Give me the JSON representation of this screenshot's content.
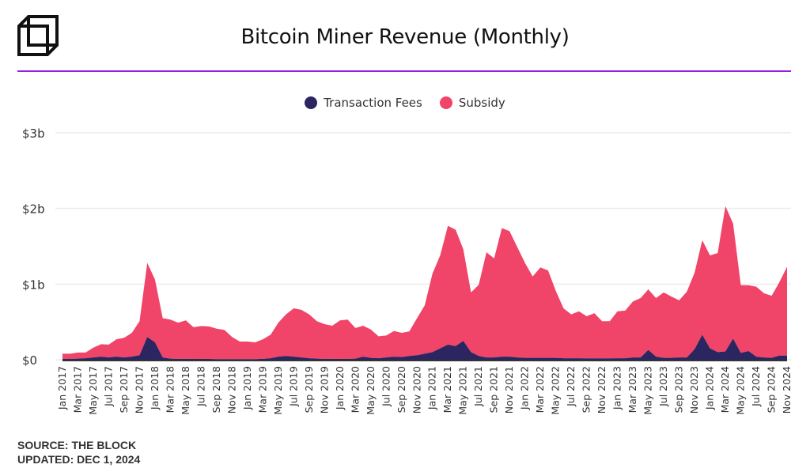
{
  "header": {
    "title": "Bitcoin Miner Revenue (Monthly)",
    "logo_icon": "cube-outline-icon"
  },
  "footer": {
    "source": "SOURCE: THE BLOCK",
    "updated": "UPDATED: DEC 1, 2024"
  },
  "colors": {
    "fees": "#2b2560",
    "subsidy": "#f04469",
    "accent_rule": "#9b1de0",
    "grid": "#ececec"
  },
  "chart_data": {
    "type": "area",
    "stacked": true,
    "title": "Bitcoin Miner Revenue (Monthly)",
    "xlabel": "",
    "ylabel": "",
    "ylim": [
      0,
      3
    ],
    "y_unit": "$b",
    "yticks": [
      {
        "value": 0,
        "label": "$0"
      },
      {
        "value": 1,
        "label": "$1b"
      },
      {
        "value": 2,
        "label": "$2b"
      },
      {
        "value": 3,
        "label": "$3b"
      }
    ],
    "grid": true,
    "legend_position": "top-center",
    "categories": [
      "Jan 2017",
      "Feb 2017",
      "Mar 2017",
      "Apr 2017",
      "May 2017",
      "Jun 2017",
      "Jul 2017",
      "Aug 2017",
      "Sep 2017",
      "Oct 2017",
      "Nov 2017",
      "Dec 2017",
      "Jan 2018",
      "Feb 2018",
      "Mar 2018",
      "Apr 2018",
      "May 2018",
      "Jun 2018",
      "Jul 2018",
      "Aug 2018",
      "Sep 2018",
      "Oct 2018",
      "Nov 2018",
      "Dec 2018",
      "Jan 2019",
      "Feb 2019",
      "Mar 2019",
      "Apr 2019",
      "May 2019",
      "Jun 2019",
      "Jul 2019",
      "Aug 2019",
      "Sep 2019",
      "Oct 2019",
      "Nov 2019",
      "Dec 2019",
      "Jan 2020",
      "Feb 2020",
      "Mar 2020",
      "Apr 2020",
      "May 2020",
      "Jun 2020",
      "Jul 2020",
      "Aug 2020",
      "Sep 2020",
      "Oct 2020",
      "Nov 2020",
      "Dec 2020",
      "Jan 2021",
      "Feb 2021",
      "Mar 2021",
      "Apr 2021",
      "May 2021",
      "Jun 2021",
      "Jul 2021",
      "Aug 2021",
      "Sep 2021",
      "Oct 2021",
      "Nov 2021",
      "Dec 2021",
      "Jan 2022",
      "Feb 2022",
      "Mar 2022",
      "Apr 2022",
      "May 2022",
      "Jun 2022",
      "Jul 2022",
      "Aug 2022",
      "Sep 2022",
      "Oct 2022",
      "Nov 2022",
      "Dec 2022",
      "Jan 2023",
      "Feb 2023",
      "Mar 2023",
      "Apr 2023",
      "May 2023",
      "Jun 2023",
      "Jul 2023",
      "Aug 2023",
      "Sep 2023",
      "Oct 2023",
      "Nov 2023",
      "Dec 2023",
      "Jan 2024",
      "Feb 2024",
      "Mar 2024",
      "Apr 2024",
      "May 2024",
      "Jun 2024",
      "Jul 2024",
      "Aug 2024",
      "Sep 2024",
      "Oct 2024",
      "Nov 2024"
    ],
    "series": [
      {
        "name": "Transaction Fees",
        "color": "#2b2560",
        "values": [
          0.01,
          0.012,
          0.015,
          0.02,
          0.03,
          0.04,
          0.03,
          0.04,
          0.03,
          0.04,
          0.06,
          0.3,
          0.23,
          0.03,
          0.015,
          0.012,
          0.012,
          0.01,
          0.01,
          0.01,
          0.008,
          0.008,
          0.008,
          0.008,
          0.008,
          0.008,
          0.012,
          0.02,
          0.04,
          0.05,
          0.04,
          0.03,
          0.02,
          0.015,
          0.012,
          0.012,
          0.01,
          0.012,
          0.015,
          0.04,
          0.025,
          0.02,
          0.03,
          0.04,
          0.035,
          0.05,
          0.06,
          0.08,
          0.1,
          0.15,
          0.2,
          0.18,
          0.25,
          0.1,
          0.05,
          0.03,
          0.03,
          0.04,
          0.04,
          0.03,
          0.025,
          0.025,
          0.025,
          0.025,
          0.025,
          0.02,
          0.02,
          0.02,
          0.018,
          0.018,
          0.018,
          0.018,
          0.02,
          0.02,
          0.03,
          0.03,
          0.13,
          0.04,
          0.025,
          0.025,
          0.03,
          0.03,
          0.14,
          0.33,
          0.15,
          0.1,
          0.11,
          0.28,
          0.09,
          0.115,
          0.04,
          0.03,
          0.025,
          0.055,
          0.055
        ]
      },
      {
        "name": "Subsidy",
        "color": "#f04469",
        "values": [
          0.07,
          0.068,
          0.08,
          0.075,
          0.13,
          0.165,
          0.17,
          0.23,
          0.26,
          0.315,
          0.45,
          0.98,
          0.83,
          0.52,
          0.515,
          0.478,
          0.508,
          0.42,
          0.435,
          0.43,
          0.402,
          0.387,
          0.292,
          0.232,
          0.232,
          0.222,
          0.258,
          0.31,
          0.45,
          0.55,
          0.64,
          0.63,
          0.58,
          0.495,
          0.458,
          0.438,
          0.51,
          0.518,
          0.405,
          0.41,
          0.375,
          0.29,
          0.29,
          0.34,
          0.32,
          0.325,
          0.49,
          0.64,
          1.04,
          1.23,
          1.57,
          1.54,
          1.21,
          0.79,
          0.94,
          1.39,
          1.31,
          1.7,
          1.66,
          1.46,
          1.255,
          1.075,
          1.195,
          1.155,
          0.885,
          0.66,
          0.58,
          0.62,
          0.557,
          0.597,
          0.492,
          0.492,
          0.62,
          0.63,
          0.74,
          0.785,
          0.8,
          0.775,
          0.865,
          0.81,
          0.755,
          0.87,
          1.01,
          1.25,
          1.23,
          1.31,
          1.92,
          1.52,
          0.895,
          0.87,
          0.925,
          0.85,
          0.82,
          0.97,
          1.175
        ]
      }
    ]
  }
}
